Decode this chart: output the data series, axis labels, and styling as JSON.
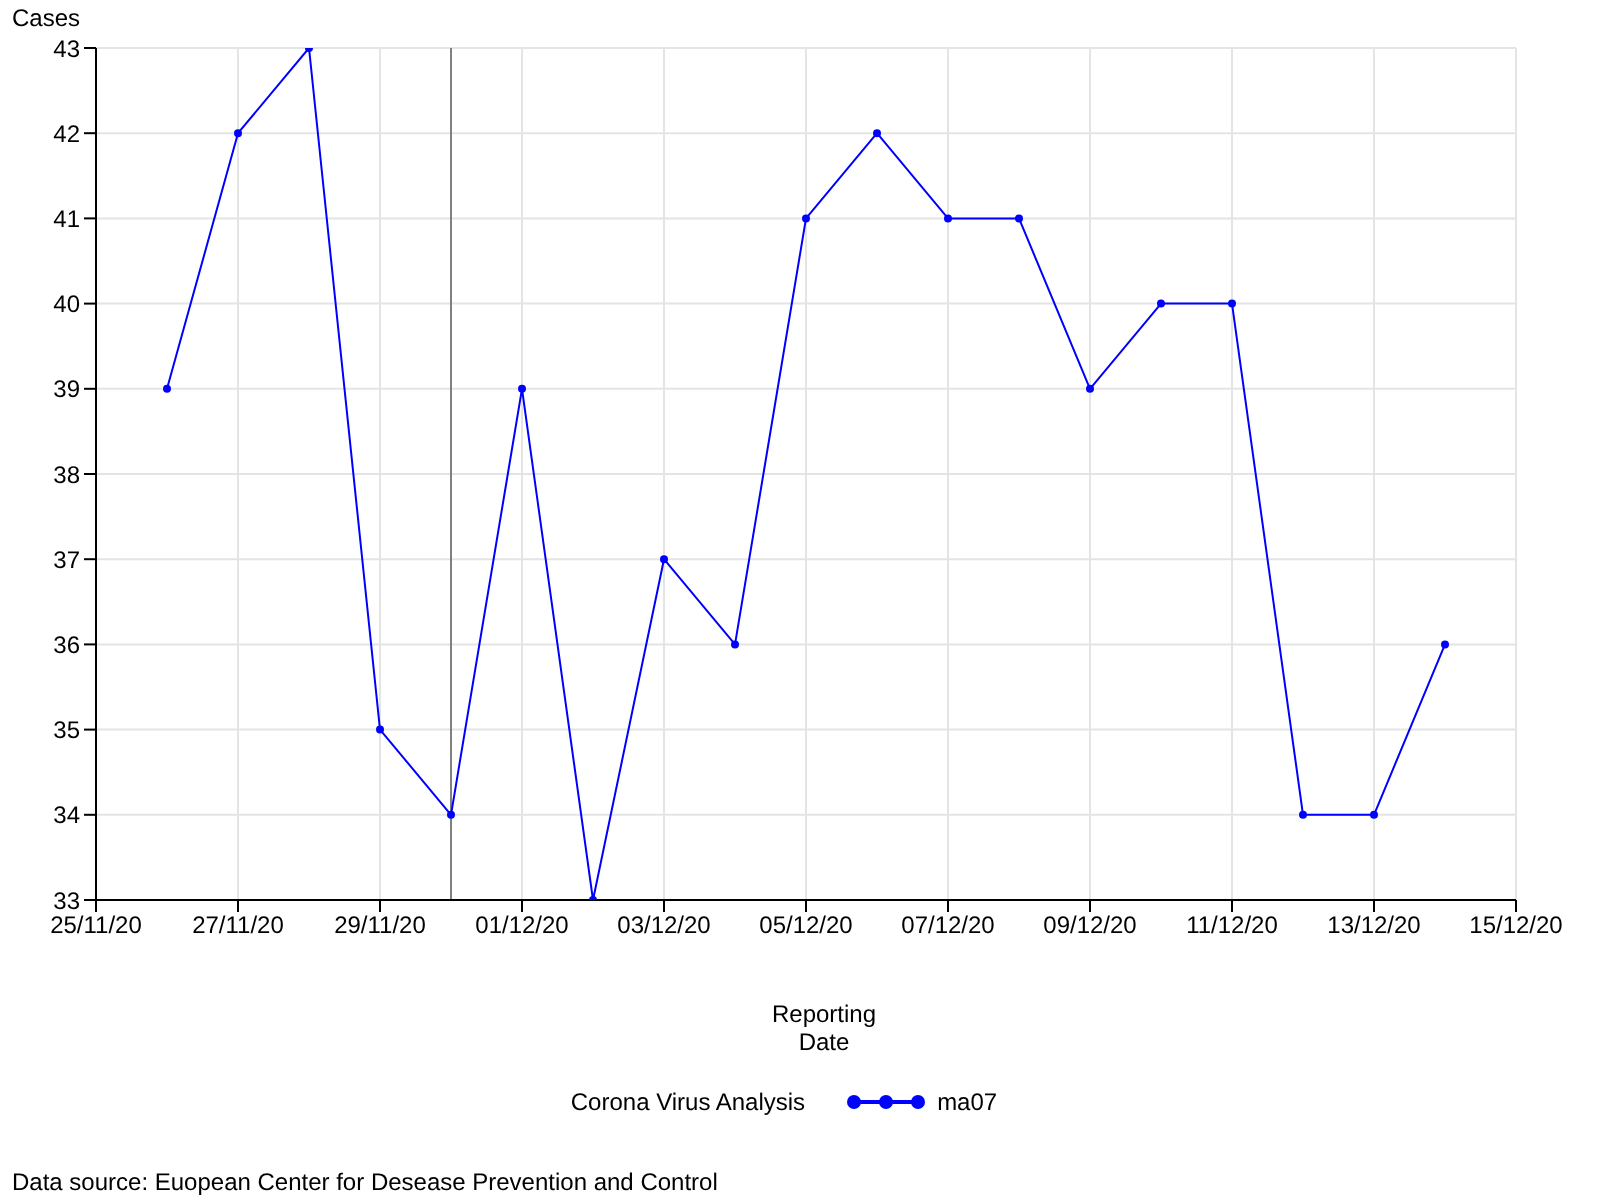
{
  "chart_data": {
    "type": "line",
    "ylabel": "Cases",
    "xlabel": "Reporting Date",
    "legend_title": "Corona Virus Analysis",
    "x": [
      "--11-26",
      "--11-27",
      "--11-28",
      "--11-29",
      "--11-30",
      "--12-01",
      "--12-02",
      "--12-03",
      "--12-04",
      "--12-05",
      "--12-06",
      "--12-07",
      "--12-08",
      "--12-09",
      "--12-10",
      "--12-11",
      "--12-12",
      "--12-13",
      "--12-14"
    ],
    "series": [
      {
        "name": "ma07",
        "color": "#0000ff",
        "values": [
          39,
          42,
          43,
          35,
          34,
          39,
          33,
          37,
          36,
          41,
          42,
          41,
          41,
          39,
          40,
          40,
          34,
          34,
          36
        ]
      }
    ],
    "xlim": [
      "--11-25",
      "--12-15"
    ],
    "xticks": [
      {
        "value": "--11-25",
        "label": "25/11/20"
      },
      {
        "value": "--11-27",
        "label": "27/11/20"
      },
      {
        "value": "--11-29",
        "label": "29/11/20"
      },
      {
        "value": "--12-01",
        "label": "01/12/20"
      },
      {
        "value": "--12-03",
        "label": "03/12/20"
      },
      {
        "value": "--12-05",
        "label": "05/12/20"
      },
      {
        "value": "--12-07",
        "label": "07/12/20"
      },
      {
        "value": "--12-09",
        "label": "09/12/20"
      },
      {
        "value": "--12-11",
        "label": "11/12/20"
      },
      {
        "value": "--12-13",
        "label": "13/12/20"
      },
      {
        "value": "--12-15",
        "label": "15/12/20"
      }
    ],
    "ylim": [
      33,
      43
    ],
    "yticks": [
      33,
      34,
      35,
      36,
      37,
      38,
      39,
      40,
      41,
      42,
      43
    ],
    "ref_lines": [
      {
        "axis": "x",
        "value": "--11-30",
        "color": "#808080"
      }
    ],
    "grid": true,
    "legend": "bottom",
    "marker": "circle",
    "line_style": "solid",
    "annotations": [
      "Data source: Euopean Center for Desease Prevention and Control"
    ]
  }
}
